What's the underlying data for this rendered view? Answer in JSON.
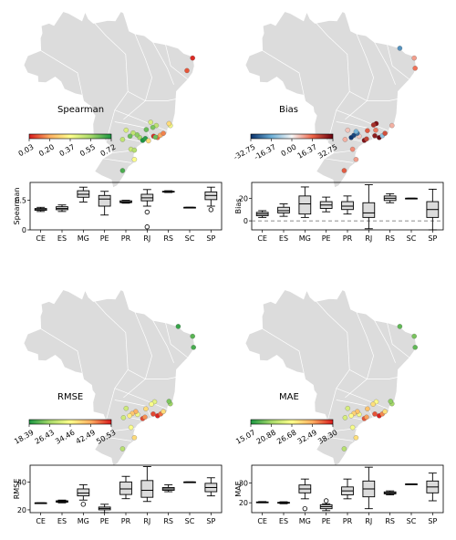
{
  "panels": [
    {
      "metric": "Spearman",
      "colorbar": {
        "cmap": "red-yellow-green",
        "ticks": [
          "0.03",
          "0.20",
          "0.37",
          "0.55",
          "0.72"
        ]
      },
      "points": [
        {
          "lon": -35.2,
          "lat": -5.8,
          "v": 0.05
        },
        {
          "lon": -36.5,
          "lat": -8.5,
          "v": 0.1
        },
        {
          "lon": -43.5,
          "lat": -20.3,
          "v": 0.5
        },
        {
          "lon": -44.3,
          "lat": -20.7,
          "v": 0.6
        },
        {
          "lon": -45.8,
          "lat": -21.2,
          "v": 0.62
        },
        {
          "lon": -44.8,
          "lat": -19.6,
          "v": 0.45
        },
        {
          "lon": -47.3,
          "lat": -22.9,
          "v": 0.55
        },
        {
          "lon": -46.6,
          "lat": -23.5,
          "v": 0.72
        },
        {
          "lon": -46.0,
          "lat": -23.1,
          "v": 0.7
        },
        {
          "lon": -47.9,
          "lat": -22.3,
          "v": 0.58
        },
        {
          "lon": -48.8,
          "lat": -21.9,
          "v": 0.5
        },
        {
          "lon": -49.5,
          "lat": -22.6,
          "v": 0.62
        },
        {
          "lon": -50.4,
          "lat": -21.3,
          "v": 0.45
        },
        {
          "lon": -45.3,
          "lat": -23.6,
          "v": 0.3
        },
        {
          "lon": -43.2,
          "lat": -22.9,
          "v": 0.12
        },
        {
          "lon": -42.6,
          "lat": -22.4,
          "v": 0.2
        },
        {
          "lon": -44.1,
          "lat": -22.6,
          "v": 0.05
        },
        {
          "lon": -41.9,
          "lat": -22.0,
          "v": 0.15
        },
        {
          "lon": -43.7,
          "lat": -22.8,
          "v": 0.62
        },
        {
          "lon": -49.3,
          "lat": -25.4,
          "v": 0.48
        },
        {
          "lon": -51.2,
          "lat": -23.3,
          "v": 0.5
        },
        {
          "lon": -48.5,
          "lat": -25.6,
          "v": 0.52
        },
        {
          "lon": -40.3,
          "lat": -20.3,
          "v": 0.4
        },
        {
          "lon": -40.6,
          "lat": -19.9,
          "v": 0.3
        },
        {
          "lon": -51.2,
          "lat": -30.0,
          "v": 0.66
        },
        {
          "lon": -48.5,
          "lat": -27.6,
          "v": 0.38
        }
      ],
      "box": {
        "ylabel": "Spearman",
        "ylim": [
          0.0,
          0.8
        ],
        "yticks": [
          0.0,
          0.5
        ],
        "categories": [
          "CE",
          "ES",
          "MG",
          "PE",
          "PR",
          "RJ",
          "RS",
          "SC",
          "SP"
        ],
        "stats": [
          {
            "min": 0.31,
            "q1": 0.33,
            "med": 0.35,
            "q3": 0.36,
            "max": 0.38,
            "out": []
          },
          {
            "min": 0.31,
            "q1": 0.34,
            "med": 0.36,
            "q3": 0.39,
            "max": 0.42,
            "out": []
          },
          {
            "min": 0.47,
            "q1": 0.55,
            "med": 0.6,
            "q3": 0.66,
            "max": 0.72,
            "out": []
          },
          {
            "min": 0.25,
            "q1": 0.4,
            "med": 0.52,
            "q3": 0.58,
            "max": 0.65,
            "out": []
          },
          {
            "min": 0.45,
            "q1": 0.46,
            "med": 0.47,
            "q3": 0.49,
            "max": 0.5,
            "out": []
          },
          {
            "min": 0.4,
            "q1": 0.49,
            "med": 0.54,
            "q3": 0.6,
            "max": 0.68,
            "out": [
              0.3,
              0.05
            ]
          },
          {
            "min": 0.63,
            "q1": 0.64,
            "med": 0.64,
            "q3": 0.65,
            "max": 0.66,
            "out": []
          },
          {
            "min": 0.38,
            "q1": 0.38,
            "med": 0.38,
            "q3": 0.38,
            "max": 0.38,
            "out": []
          },
          {
            "min": 0.4,
            "q1": 0.51,
            "med": 0.58,
            "q3": 0.64,
            "max": 0.72,
            "out": [
              0.34
            ]
          }
        ]
      }
    },
    {
      "metric": "Bias",
      "colorbar": {
        "cmap": "blue-white-red",
        "ticks": [
          "-32.75",
          "-16.37",
          "0.00",
          "16.37",
          "32.75"
        ]
      },
      "points": [
        {
          "lon": -38.5,
          "lat": -3.7,
          "v": -20
        },
        {
          "lon": -35.2,
          "lat": -5.8,
          "v": 10
        },
        {
          "lon": -35.0,
          "lat": -8.0,
          "v": 15
        },
        {
          "lon": -43.9,
          "lat": -19.9,
          "v": 30
        },
        {
          "lon": -44.5,
          "lat": -20.2,
          "v": 25
        },
        {
          "lon": -45.9,
          "lat": -21.4,
          "v": 18
        },
        {
          "lon": -47.8,
          "lat": -22.6,
          "v": 5
        },
        {
          "lon": -46.6,
          "lat": -23.5,
          "v": 30
        },
        {
          "lon": -46.1,
          "lat": -23.2,
          "v": 22
        },
        {
          "lon": -48.2,
          "lat": -22.0,
          "v": -25
        },
        {
          "lon": -49.0,
          "lat": -22.4,
          "v": -30
        },
        {
          "lon": -48.5,
          "lat": -21.6,
          "v": -15
        },
        {
          "lon": -49.6,
          "lat": -22.9,
          "v": -32
        },
        {
          "lon": -43.2,
          "lat": -22.9,
          "v": 32
        },
        {
          "lon": -42.5,
          "lat": -22.5,
          "v": -12
        },
        {
          "lon": -44.2,
          "lat": -22.5,
          "v": 28
        },
        {
          "lon": -41.9,
          "lat": -22.0,
          "v": 20
        },
        {
          "lon": -49.3,
          "lat": -25.4,
          "v": 12
        },
        {
          "lon": -51.0,
          "lat": -23.3,
          "v": 8
        },
        {
          "lon": -40.3,
          "lat": -20.3,
          "v": 8
        },
        {
          "lon": -51.2,
          "lat": -30.0,
          "v": 18
        },
        {
          "lon": -48.5,
          "lat": -27.6,
          "v": 10
        },
        {
          "lon": -44.0,
          "lat": -21.3,
          "v": 14
        },
        {
          "lon": -50.4,
          "lat": -21.3,
          "v": 6
        }
      ],
      "box": {
        "ylabel": "Bias",
        "ylim": [
          -8,
          34
        ],
        "yticks": [
          0,
          20
        ],
        "zero_line": true,
        "categories": [
          "CE",
          "ES",
          "MG",
          "PE",
          "PR",
          "RJ",
          "RS",
          "SC",
          "SP"
        ],
        "stats": [
          {
            "min": 3,
            "q1": 4.5,
            "med": 6,
            "q3": 7.5,
            "max": 9,
            "out": []
          },
          {
            "min": 4,
            "q1": 7,
            "med": 9,
            "q3": 12,
            "max": 15,
            "out": []
          },
          {
            "min": 3,
            "q1": 6,
            "med": 15,
            "q3": 22,
            "max": 30,
            "out": []
          },
          {
            "min": 8,
            "q1": 11,
            "med": 14,
            "q3": 17,
            "max": 21,
            "out": []
          },
          {
            "min": 6,
            "q1": 10,
            "med": 13,
            "q3": 17,
            "max": 22,
            "out": []
          },
          {
            "min": -7,
            "q1": 3,
            "med": 7,
            "q3": 16,
            "max": 32,
            "out": []
          },
          {
            "min": 16,
            "q1": 18,
            "med": 20,
            "q3": 22,
            "max": 24,
            "out": []
          },
          {
            "min": 20,
            "q1": 20,
            "med": 20,
            "q3": 20,
            "max": 20,
            "out": []
          },
          {
            "min": -8,
            "q1": 3,
            "med": 10,
            "q3": 17,
            "max": 28,
            "out": []
          }
        ]
      }
    },
    {
      "metric": "RMSE",
      "colorbar": {
        "cmap": "green-yellow-red",
        "ticks": [
          "18.39",
          "26.43",
          "34.46",
          "42.49",
          "50.53"
        ]
      },
      "points": [
        {
          "lon": -38.5,
          "lat": -3.7,
          "v": 20
        },
        {
          "lon": -35.2,
          "lat": -5.8,
          "v": 22
        },
        {
          "lon": -35.0,
          "lat": -8.2,
          "v": 21
        },
        {
          "lon": -43.9,
          "lat": -19.9,
          "v": 32
        },
        {
          "lon": -44.6,
          "lat": -20.4,
          "v": 34
        },
        {
          "lon": -45.9,
          "lat": -21.4,
          "v": 38
        },
        {
          "lon": -47.8,
          "lat": -22.6,
          "v": 33
        },
        {
          "lon": -46.6,
          "lat": -23.5,
          "v": 48
        },
        {
          "lon": -46.1,
          "lat": -23.2,
          "v": 44
        },
        {
          "lon": -48.2,
          "lat": -22.0,
          "v": 42
        },
        {
          "lon": -49.0,
          "lat": -22.4,
          "v": 40
        },
        {
          "lon": -49.6,
          "lat": -22.9,
          "v": 36
        },
        {
          "lon": -50.4,
          "lat": -21.3,
          "v": 30
        },
        {
          "lon": -43.2,
          "lat": -22.9,
          "v": 50
        },
        {
          "lon": -42.5,
          "lat": -22.5,
          "v": 46
        },
        {
          "lon": -44.2,
          "lat": -22.5,
          "v": 48
        },
        {
          "lon": -41.9,
          "lat": -22.0,
          "v": 38
        },
        {
          "lon": -40.3,
          "lat": -20.3,
          "v": 26
        },
        {
          "lon": -40.6,
          "lat": -19.8,
          "v": 24
        },
        {
          "lon": -49.3,
          "lat": -25.4,
          "v": 34
        },
        {
          "lon": -51.0,
          "lat": -23.3,
          "v": 30
        },
        {
          "lon": -51.2,
          "lat": -30.0,
          "v": 28
        },
        {
          "lon": -48.5,
          "lat": -27.6,
          "v": 38
        }
      ],
      "box": {
        "ylabel": "RMSE",
        "ylim": [
          18,
          52
        ],
        "yticks": [
          20,
          40
        ],
        "categories": [
          "CE",
          "ES",
          "MG",
          "PE",
          "PR",
          "RJ",
          "RS",
          "SC",
          "SP"
        ],
        "stats": [
          {
            "min": 25,
            "q1": 25,
            "med": 25,
            "q3": 25,
            "max": 25,
            "out": []
          },
          {
            "min": 25,
            "q1": 25.5,
            "med": 26,
            "q3": 26.5,
            "max": 27,
            "out": []
          },
          {
            "min": 27,
            "q1": 30,
            "med": 32,
            "q3": 35,
            "max": 38,
            "out": [
              24
            ]
          },
          {
            "min": 18,
            "q1": 20,
            "med": 21,
            "q3": 22,
            "max": 24,
            "out": []
          },
          {
            "min": 28,
            "q1": 31,
            "med": 35,
            "q3": 40,
            "max": 44,
            "out": []
          },
          {
            "min": 26,
            "q1": 29,
            "med": 34,
            "q3": 41,
            "max": 51,
            "out": []
          },
          {
            "min": 33,
            "q1": 34,
            "med": 35,
            "q3": 36,
            "max": 38,
            "out": []
          },
          {
            "min": 40,
            "q1": 40,
            "med": 40,
            "q3": 40,
            "max": 40,
            "out": []
          },
          {
            "min": 30,
            "q1": 33,
            "med": 36,
            "q3": 39,
            "max": 43,
            "out": []
          }
        ]
      }
    },
    {
      "metric": "MAE",
      "colorbar": {
        "cmap": "green-yellow-red",
        "ticks": [
          "15.07",
          "20.88",
          "26.68",
          "32.49",
          "38.30"
        ]
      },
      "points": [
        {
          "lon": -38.5,
          "lat": -3.7,
          "v": 18
        },
        {
          "lon": -35.2,
          "lat": -5.8,
          "v": 19
        },
        {
          "lon": -35.0,
          "lat": -8.2,
          "v": 18
        },
        {
          "lon": -43.9,
          "lat": -19.9,
          "v": 27
        },
        {
          "lon": -44.6,
          "lat": -20.4,
          "v": 29
        },
        {
          "lon": -45.9,
          "lat": -21.4,
          "v": 31
        },
        {
          "lon": -47.8,
          "lat": -22.6,
          "v": 26
        },
        {
          "lon": -46.6,
          "lat": -23.5,
          "v": 36
        },
        {
          "lon": -46.1,
          "lat": -23.2,
          "v": 33
        },
        {
          "lon": -48.2,
          "lat": -22.0,
          "v": 31
        },
        {
          "lon": -49.0,
          "lat": -22.4,
          "v": 30
        },
        {
          "lon": -49.6,
          "lat": -22.9,
          "v": 27
        },
        {
          "lon": -50.4,
          "lat": -21.3,
          "v": 24
        },
        {
          "lon": -43.2,
          "lat": -22.9,
          "v": 38
        },
        {
          "lon": -42.5,
          "lat": -22.5,
          "v": 34
        },
        {
          "lon": -44.2,
          "lat": -22.5,
          "v": 36
        },
        {
          "lon": -41.9,
          "lat": -22.0,
          "v": 29
        },
        {
          "lon": -40.3,
          "lat": -20.3,
          "v": 21
        },
        {
          "lon": -40.6,
          "lat": -19.8,
          "v": 20
        },
        {
          "lon": -49.3,
          "lat": -25.4,
          "v": 26
        },
        {
          "lon": -51.0,
          "lat": -23.3,
          "v": 24
        },
        {
          "lon": -51.2,
          "lat": -30.0,
          "v": 22
        },
        {
          "lon": -48.5,
          "lat": -27.6,
          "v": 29
        }
      ],
      "box": {
        "ylabel": "MAE",
        "ylim": [
          15,
          39
        ],
        "yticks": [
          20,
          30
        ],
        "categories": [
          "CE",
          "ES",
          "MG",
          "PE",
          "PR",
          "RJ",
          "RS",
          "SC",
          "SP"
        ],
        "stats": [
          {
            "min": 20,
            "q1": 20,
            "med": 20.2,
            "q3": 20.4,
            "max": 20.6,
            "out": []
          },
          {
            "min": 19.5,
            "q1": 19.8,
            "med": 20,
            "q3": 20.2,
            "max": 20.5,
            "out": []
          },
          {
            "min": 22,
            "q1": 25,
            "med": 27,
            "q3": 29,
            "max": 32,
            "out": [
              17
            ]
          },
          {
            "min": 16,
            "q1": 17,
            "med": 18,
            "q3": 19,
            "max": 19.5,
            "out": [
              21
            ]
          },
          {
            "min": 22,
            "q1": 24,
            "med": 26,
            "q3": 28,
            "max": 32,
            "out": []
          },
          {
            "min": 17,
            "q1": 23,
            "med": 27,
            "q3": 31,
            "max": 38,
            "out": []
          },
          {
            "min": 24,
            "q1": 24.5,
            "med": 25,
            "q3": 25.5,
            "max": 26,
            "out": []
          },
          {
            "min": 29.5,
            "q1": 29.5,
            "med": 29.5,
            "q3": 29.5,
            "max": 29.5,
            "out": []
          },
          {
            "min": 21,
            "q1": 25,
            "med": 28,
            "q3": 31,
            "max": 35,
            "out": []
          }
        ]
      }
    }
  ],
  "chart_data": [
    {
      "type": "box",
      "title": "",
      "ylabel": "Spearman",
      "categories": [
        "CE",
        "ES",
        "MG",
        "PE",
        "PR",
        "RJ",
        "RS",
        "SC",
        "SP"
      ],
      "median": [
        0.35,
        0.36,
        0.6,
        0.52,
        0.47,
        0.54,
        0.64,
        0.38,
        0.58
      ],
      "colorbar_ticks": [
        0.03,
        0.2,
        0.37,
        0.55,
        0.72
      ]
    },
    {
      "type": "box",
      "title": "",
      "ylabel": "Bias",
      "categories": [
        "CE",
        "ES",
        "MG",
        "PE",
        "PR",
        "RJ",
        "RS",
        "SC",
        "SP"
      ],
      "median": [
        6,
        9,
        15,
        14,
        13,
        7,
        20,
        20,
        10
      ],
      "colorbar_ticks": [
        -32.75,
        -16.37,
        0.0,
        16.37,
        32.75
      ]
    },
    {
      "type": "box",
      "title": "",
      "ylabel": "RMSE",
      "categories": [
        "CE",
        "ES",
        "MG",
        "PE",
        "PR",
        "RJ",
        "RS",
        "SC",
        "SP"
      ],
      "median": [
        25,
        26,
        32,
        21,
        35,
        34,
        35,
        40,
        36
      ],
      "colorbar_ticks": [
        18.39,
        26.43,
        34.46,
        42.49,
        50.53
      ]
    },
    {
      "type": "box",
      "title": "",
      "ylabel": "MAE",
      "categories": [
        "CE",
        "ES",
        "MG",
        "PE",
        "PR",
        "RJ",
        "RS",
        "SC",
        "SP"
      ],
      "median": [
        20.2,
        20,
        27,
        18,
        26,
        27,
        25,
        29.5,
        28
      ],
      "colorbar_ticks": [
        15.07,
        20.88,
        26.68,
        32.49,
        38.3
      ]
    }
  ]
}
